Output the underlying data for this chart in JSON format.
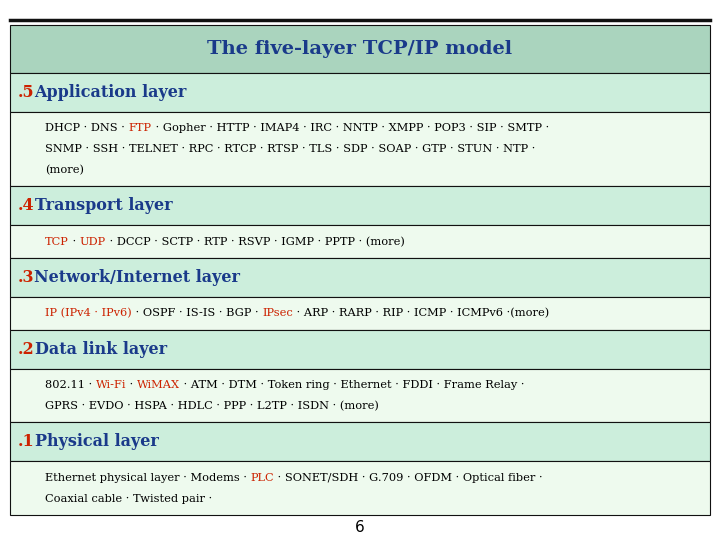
{
  "title": "The five-layer TCP/IP model",
  "title_color": "#1a3a8a",
  "title_bg": "#aad4be",
  "outer_bg": "#ffffff",
  "layer_header_bg": "#cceedc",
  "layer_content_bg": "#eefaee",
  "border_dark": "#111111",
  "border_mid": "#888888",
  "layers": [
    {
      "label": ".5",
      "name": "Application layer",
      "label_color": "#cc2200",
      "name_color": "#1a3a8a",
      "content_lines": [
        [
          {
            "text": "DHCP · DNS · ",
            "color": "#000000"
          },
          {
            "text": "FTP",
            "color": "#cc2200"
          },
          {
            "text": " · Gopher · HTTP · IMAP4 · IRC · NNTP · XMPP · POP3 · SIP · SMTP ·",
            "color": "#000000"
          }
        ],
        [
          {
            "text": "SNMP · SSH · TELNET · RPC · RTCP · RTSP · TLS · SDP · SOAP · GTP · STUN · NTP ·",
            "color": "#000000"
          }
        ],
        [
          {
            "text": "(more)",
            "color": "#000000"
          }
        ]
      ]
    },
    {
      "label": ".4",
      "name": "Transport layer",
      "label_color": "#cc2200",
      "name_color": "#1a3a8a",
      "content_lines": [
        [
          {
            "text": "TCP",
            "color": "#cc2200"
          },
          {
            "text": " · ",
            "color": "#000000"
          },
          {
            "text": "UDP",
            "color": "#cc2200"
          },
          {
            "text": " · DCCP · SCTP · RTP · RSVP · IGMP · PPTP · (more)",
            "color": "#000000"
          }
        ]
      ]
    },
    {
      "label": ".3",
      "name": "Network/Internet layer",
      "label_color": "#cc2200",
      "name_color": "#1a3a8a",
      "content_lines": [
        [
          {
            "text": "IP (IPv4 · IPv6)",
            "color": "#cc2200"
          },
          {
            "text": " · OSPF · IS-IS · BGP · ",
            "color": "#000000"
          },
          {
            "text": "IPsec",
            "color": "#cc2200"
          },
          {
            "text": " · ARP · RARP · RIP · ICMP · ICMPv6 ·(more)",
            "color": "#000000"
          }
        ]
      ]
    },
    {
      "label": ".2",
      "name": "Data link layer",
      "label_color": "#cc2200",
      "name_color": "#1a3a8a",
      "content_lines": [
        [
          {
            "text": "802.11 · ",
            "color": "#000000"
          },
          {
            "text": "Wi-Fi",
            "color": "#cc2200"
          },
          {
            "text": " · ",
            "color": "#000000"
          },
          {
            "text": "WiMAX",
            "color": "#cc2200"
          },
          {
            "text": " · ATM · DTM · Token ring · Ethernet · FDDI · Frame Relay ·",
            "color": "#000000"
          }
        ],
        [
          {
            "text": "GPRS · EVDO · HSPA · HDLC · PPP · L2TP · ISDN · (more)",
            "color": "#000000"
          }
        ]
      ]
    },
    {
      "label": ".1",
      "name": "Physical layer",
      "label_color": "#cc2200",
      "name_color": "#1a3a8a",
      "content_lines": [
        [
          {
            "text": "Ethernet physical layer · Modems · ",
            "color": "#000000"
          },
          {
            "text": "PLC",
            "color": "#cc2200"
          },
          {
            "text": " · SONET/SDH · G.709 · OFDM · Optical fiber ·",
            "color": "#000000"
          }
        ],
        [
          {
            "text": "Coaxial cable · Twisted pair ·",
            "color": "#000000"
          }
        ]
      ]
    }
  ],
  "footer_text": "6",
  "content_line_counts": [
    3,
    1,
    1,
    2,
    2
  ],
  "text_fontsize": 8.2,
  "header_fontsize": 11.5
}
